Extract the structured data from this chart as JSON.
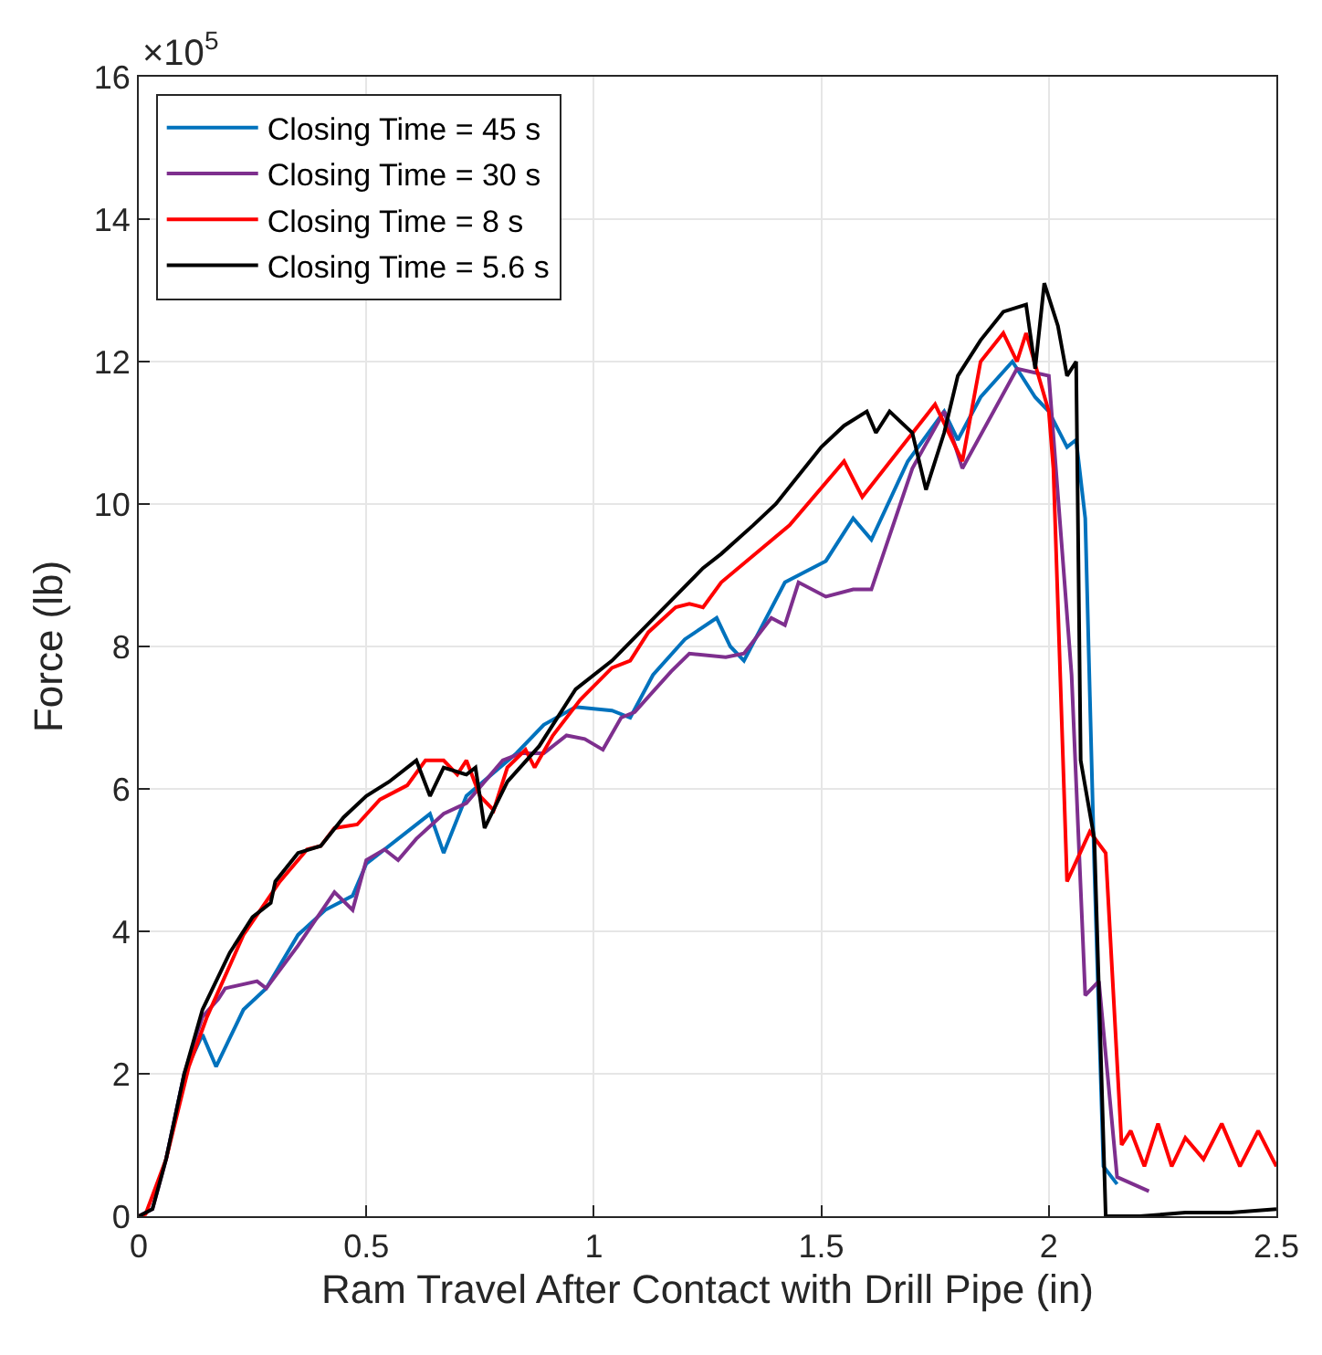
{
  "chart_data": {
    "type": "line",
    "xlabel": "Ram Travel After Contact with Drill Pipe (in)",
    "ylabel": "Force (lb)",
    "annotations": [
      "×10$^{5}$"
    ],
    "xlim": [
      0,
      2.5
    ],
    "xticks": [
      0,
      0.5,
      1,
      1.5,
      2,
      2.5
    ],
    "ylim": [
      0,
      16
    ],
    "yticks": [
      0,
      2,
      4,
      6,
      8,
      10,
      12,
      14,
      16
    ],
    "grid": true,
    "legend": "top left",
    "line_style": "solid",
    "series": [
      {
        "name": "Closing Time = 45 s",
        "color": "#0072bd",
        "x": [
          0.06,
          0.1,
          0.14,
          0.17,
          0.23,
          0.28,
          0.35,
          0.41,
          0.47,
          0.5,
          0.64,
          0.67,
          0.72,
          0.83,
          0.89,
          0.96,
          1.04,
          1.08,
          1.13,
          1.2,
          1.27,
          1.3,
          1.33,
          1.42,
          1.51,
          1.57,
          1.61,
          1.69,
          1.77,
          1.8,
          1.85,
          1.92,
          1.97,
          2.0,
          2.04,
          2.06,
          2.08,
          2.1,
          2.12,
          2.15
        ],
        "values": [
          0.8,
          2.0,
          2.55,
          2.1,
          2.9,
          3.2,
          3.95,
          4.3,
          4.5,
          4.95,
          5.65,
          5.1,
          5.9,
          6.5,
          6.9,
          7.15,
          7.1,
          7.0,
          7.6,
          8.1,
          8.4,
          8.0,
          7.8,
          8.9,
          9.2,
          9.8,
          9.5,
          10.6,
          11.3,
          10.9,
          11.5,
          12.0,
          11.5,
          11.3,
          10.8,
          10.9,
          9.8,
          4.9,
          0.7,
          0.45
        ]
      },
      {
        "name": "Closing Time = 30 s",
        "color": "#7e2f8e",
        "x": [
          0,
          0.03,
          0.06,
          0.1,
          0.14,
          0.175,
          0.19,
          0.26,
          0.28,
          0.35,
          0.43,
          0.47,
          0.5,
          0.54,
          0.57,
          0.61,
          0.67,
          0.72,
          0.8,
          0.84,
          0.89,
          0.94,
          0.98,
          1.02,
          1.06,
          1.09,
          1.17,
          1.21,
          1.29,
          1.33,
          1.39,
          1.42,
          1.45,
          1.51,
          1.57,
          1.61,
          1.7,
          1.77,
          1.81,
          1.93,
          2.0,
          2.05,
          2.08,
          2.11,
          2.15,
          2.22
        ],
        "values": [
          0,
          0.1,
          0.8,
          2.0,
          2.8,
          3.05,
          3.2,
          3.3,
          3.2,
          3.8,
          4.55,
          4.3,
          5.0,
          5.15,
          5.0,
          5.3,
          5.65,
          5.8,
          6.4,
          6.5,
          6.5,
          6.75,
          6.7,
          6.55,
          7.0,
          7.08,
          7.65,
          7.9,
          7.85,
          7.9,
          8.4,
          8.3,
          8.9,
          8.7,
          8.8,
          8.8,
          10.5,
          11.3,
          10.5,
          11.9,
          11.8,
          7.6,
          3.1,
          3.3,
          0.55,
          0.35
        ]
      },
      {
        "name": "Closing Time = 8 s",
        "color": "#ff0000",
        "x": [
          0,
          0.015,
          0.06,
          0.11,
          0.15,
          0.23,
          0.31,
          0.37,
          0.4,
          0.43,
          0.48,
          0.53,
          0.59,
          0.63,
          0.67,
          0.7,
          0.72,
          0.75,
          0.78,
          0.81,
          0.85,
          0.87,
          0.91,
          0.97,
          1.04,
          1.08,
          1.12,
          1.18,
          1.21,
          1.24,
          1.28,
          1.43,
          1.55,
          1.59,
          1.75,
          1.81,
          1.85,
          1.9,
          1.93,
          1.95,
          2.0,
          2.01,
          2.04,
          2.09,
          2.125,
          2.16,
          2.18,
          2.21,
          2.24,
          2.27,
          2.3,
          2.34,
          2.38,
          2.42,
          2.46,
          2.5
        ],
        "values": [
          0,
          0.03,
          0.8,
          2.1,
          2.8,
          3.95,
          4.7,
          5.15,
          5.2,
          5.45,
          5.5,
          5.85,
          6.05,
          6.4,
          6.4,
          6.2,
          6.4,
          5.9,
          5.7,
          6.3,
          6.55,
          6.3,
          6.75,
          7.25,
          7.7,
          7.8,
          8.2,
          8.55,
          8.6,
          8.55,
          8.9,
          9.7,
          10.6,
          10.1,
          11.4,
          10.6,
          12.0,
          12.4,
          12.0,
          12.4,
          11.3,
          10.5,
          4.7,
          5.4,
          5.1,
          1.0,
          1.2,
          0.7,
          1.3,
          0.7,
          1.1,
          0.8,
          1.3,
          0.7,
          1.2,
          0.7
        ]
      },
      {
        "name": "Closing Time = 5.6 s",
        "color": "#000000",
        "x": [
          0,
          0.03,
          0.06,
          0.1,
          0.14,
          0.2,
          0.25,
          0.29,
          0.3,
          0.35,
          0.4,
          0.45,
          0.5,
          0.55,
          0.61,
          0.64,
          0.67,
          0.72,
          0.74,
          0.76,
          0.81,
          0.88,
          0.96,
          1.04,
          1.14,
          1.24,
          1.28,
          1.35,
          1.4,
          1.45,
          1.5,
          1.55,
          1.6,
          1.62,
          1.65,
          1.7,
          1.73,
          1.77,
          1.8,
          1.85,
          1.9,
          1.95,
          1.97,
          1.99,
          2.02,
          2.04,
          2.06,
          2.07,
          2.1,
          2.125,
          2.2,
          2.3,
          2.4,
          2.5
        ],
        "values": [
          0,
          0.1,
          0.8,
          2.0,
          2.9,
          3.7,
          4.2,
          4.4,
          4.7,
          5.1,
          5.2,
          5.6,
          5.9,
          6.1,
          6.4,
          5.9,
          6.3,
          6.2,
          6.3,
          5.45,
          6.1,
          6.6,
          7.4,
          7.8,
          8.45,
          9.1,
          9.3,
          9.7,
          10.0,
          10.4,
          10.8,
          11.1,
          11.3,
          11.0,
          11.3,
          11.0,
          10.2,
          11.0,
          11.8,
          12.3,
          12.7,
          12.8,
          11.9,
          13.1,
          12.5,
          11.8,
          12.0,
          6.4,
          5.3,
          0,
          0,
          0.05,
          0.05,
          0.1
        ]
      }
    ]
  }
}
